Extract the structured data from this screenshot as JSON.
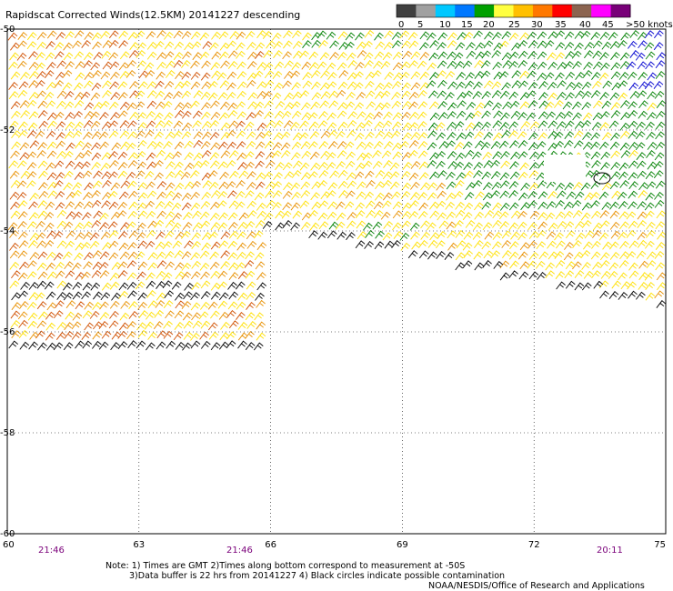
{
  "title": "Rapidscat Corrected Winds(12.5KM) 20141227 descending",
  "legend": {
    "labels": [
      "0",
      "5",
      "10",
      "15",
      "20",
      "25",
      "30",
      "35",
      "40",
      "45",
      ">50 knots"
    ],
    "colors": [
      "#404040",
      "#a0a0a0",
      "#00c8ff",
      "#0078ff",
      "#00a000",
      "#ffff40",
      "#ffc000",
      "#ff7800",
      "#ff0000",
      "#8c6450",
      "#ff00ff",
      "#780078"
    ]
  },
  "axes": {
    "x_ticks": [
      "60",
      "63",
      "66",
      "69",
      "72",
      "75"
    ],
    "y_ticks": [
      "-50",
      "-52",
      "-54",
      "-56",
      "-58",
      "-60"
    ]
  },
  "times": [
    "21:46",
    "21:46",
    "20:11"
  ],
  "notes": {
    "line1": "Note: 1) Times are GMT 2)Times along bottom correspond to measurement at -50S",
    "line2": "3)Data buffer is 22 hrs from 20141227 4) Black circles indicate possible contamination",
    "credit": "NOAA/NESDIS/Office of Research and Applications"
  },
  "map_data": {
    "lon_range": [
      60,
      75
    ],
    "lat_range": [
      -60,
      -50
    ],
    "wind_field": "wind barbs, 12.5 km cells, speeds mostly 20-30 knots, higher to the west and lower to the northeast",
    "colors": {
      "low": "#000000",
      "green": "#008000",
      "yellow": "#ffe000",
      "orange": "#e89000",
      "red_orange": "#d05000",
      "blue": "#0000d0"
    }
  }
}
